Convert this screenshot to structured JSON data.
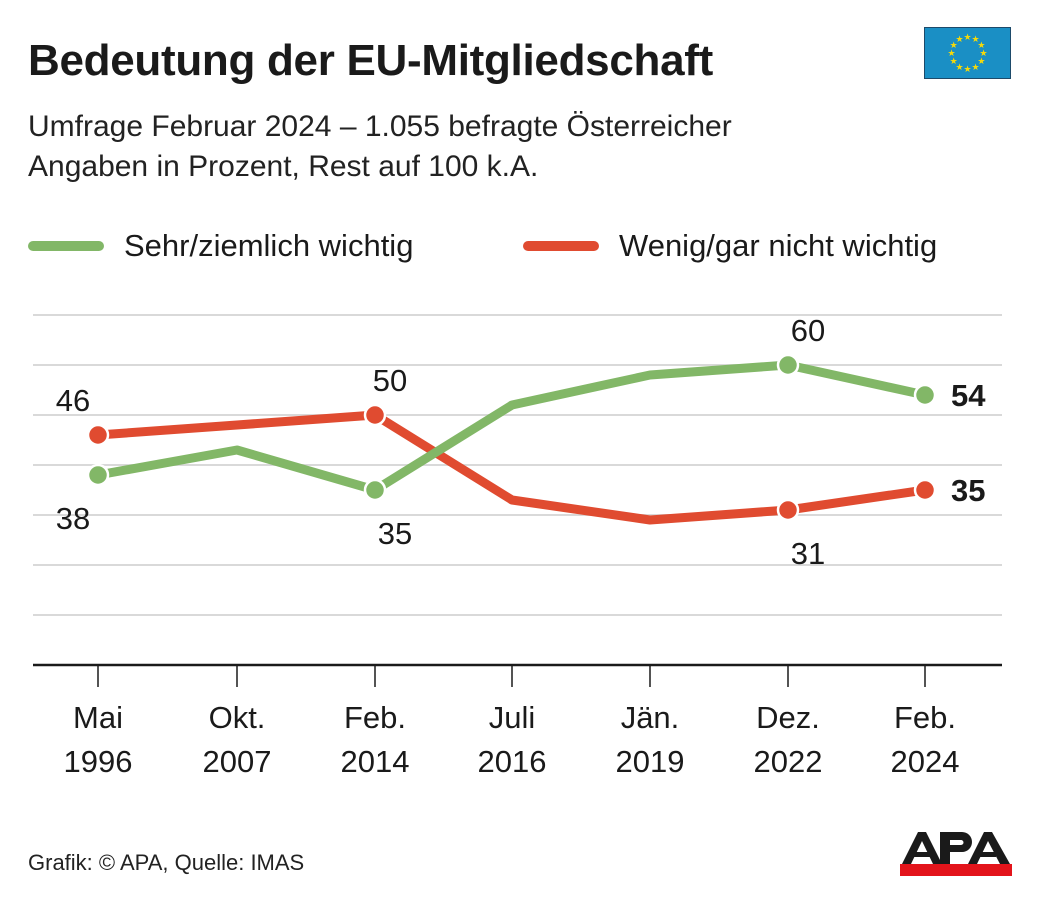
{
  "header": {
    "title": "Bedeutung der EU-Mitgliedschaft",
    "subtitle_line1": "Umfrage Februar 2024 – 1.055 befragte Österreicher",
    "subtitle_line2": "Angaben in Prozent, Rest auf 100 k.A.",
    "flag_icon": "eu-flag-icon"
  },
  "footer": {
    "credit": "Grafik: © APA, Quelle: IMAS",
    "logo_text": "APA"
  },
  "colors": {
    "green": "#82b767",
    "red": "#e04b30",
    "grid": "#d9d9d9",
    "axis": "#1a1a1a",
    "flag_blue": "#1a8fc5",
    "flag_star": "#f5d90a",
    "apa_red": "#e3141b"
  },
  "chart_data": {
    "type": "line",
    "title": "Bedeutung der EU-Mitgliedschaft",
    "xlabel": "",
    "ylabel": "Prozent",
    "ylim": [
      0,
      70
    ],
    "grid": true,
    "legend_position": "top",
    "categories": [
      {
        "line1": "Mai",
        "line2": "1996"
      },
      {
        "line1": "Okt.",
        "line2": "2007"
      },
      {
        "line1": "Feb.",
        "line2": "2014"
      },
      {
        "line1": "Juli",
        "line2": "2016"
      },
      {
        "line1": "Jän.",
        "line2": "2019"
      },
      {
        "line1": "Dez.",
        "line2": "2022"
      },
      {
        "line1": "Feb.",
        "line2": "2024"
      }
    ],
    "series": [
      {
        "name": "Sehr/ziemlich wichtig",
        "color": "#82b767",
        "values": [
          38,
          43,
          35,
          52,
          58,
          60,
          54
        ],
        "labeled_points": [
          0,
          2,
          5,
          6
        ],
        "label_position": [
          "below",
          null,
          "below",
          null,
          null,
          "above",
          "right"
        ]
      },
      {
        "name": "Wenig/gar nicht wichtig",
        "color": "#e04b30",
        "values": [
          46,
          48,
          50,
          33,
          29,
          31,
          35
        ],
        "labeled_points": [
          0,
          2,
          5,
          6
        ],
        "label_position": [
          "above",
          null,
          "above",
          null,
          null,
          "below",
          "right"
        ]
      }
    ]
  }
}
